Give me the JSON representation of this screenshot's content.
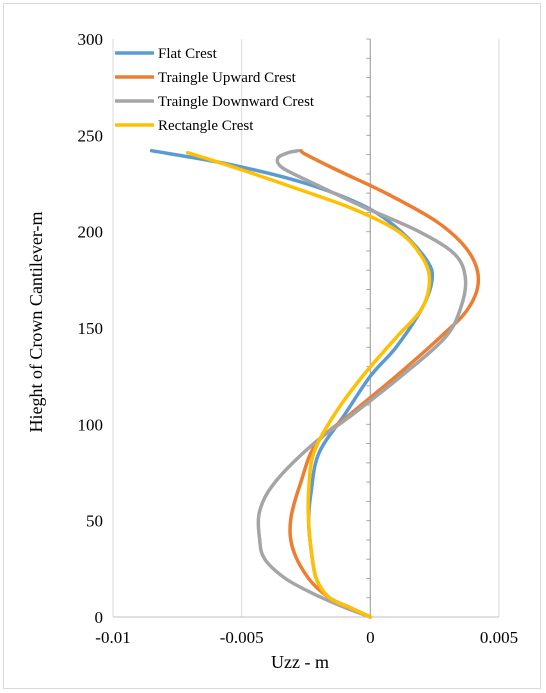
{
  "chart_data": {
    "type": "line",
    "xlabel": "Uzz - m",
    "ylabel": "Hieght of Crown Cantilever-m",
    "xlim": [
      -0.01,
      0.005
    ],
    "ylim": [
      0,
      300
    ],
    "xticks": [
      -0.01,
      -0.005,
      0,
      0.005
    ],
    "xtick_labels": [
      "-0.01",
      "-0.005",
      "0",
      "0.005"
    ],
    "yticks": [
      0,
      50,
      100,
      150,
      200,
      250,
      300
    ],
    "ytick_labels": [
      "0",
      "50",
      "100",
      "150",
      "200",
      "250",
      "300"
    ],
    "grid": "vertical",
    "legend_position": "top-left",
    "series": [
      {
        "name": "Flat Crest",
        "color": "#5B9BD5",
        "points": [
          [
            0,
            0
          ],
          [
            -0.0008,
            5
          ],
          [
            -0.0016,
            10
          ],
          [
            -0.0021,
            20
          ],
          [
            -0.0023,
            35
          ],
          [
            -0.0024,
            50
          ],
          [
            -0.0023,
            65
          ],
          [
            -0.002,
            85
          ],
          [
            -0.001,
            105
          ],
          [
            0,
            125
          ],
          [
            0.001,
            140
          ],
          [
            0.002,
            160
          ],
          [
            0.0024,
            175
          ],
          [
            0.0022,
            185
          ],
          [
            0.0012,
            200
          ],
          [
            -0.0002,
            213
          ],
          [
            -0.0025,
            225
          ],
          [
            -0.0055,
            235
          ],
          [
            -0.0085,
            242
          ]
        ]
      },
      {
        "name": "Traingle Upward Crest",
        "color": "#ED7D31",
        "points": [
          [
            0,
            0
          ],
          [
            -0.0008,
            5
          ],
          [
            -0.0016,
            10
          ],
          [
            -0.0024,
            20
          ],
          [
            -0.003,
            35
          ],
          [
            -0.0031,
            50
          ],
          [
            -0.0027,
            70
          ],
          [
            -0.0021,
            90
          ],
          [
            -0.0008,
            105
          ],
          [
            0.001,
            125
          ],
          [
            0.0027,
            145
          ],
          [
            0.0038,
            160
          ],
          [
            0.0042,
            175
          ],
          [
            0.0038,
            190
          ],
          [
            0.0026,
            205
          ],
          [
            0.0006,
            220
          ],
          [
            -0.0013,
            232
          ],
          [
            -0.0025,
            240
          ],
          [
            -0.0027,
            242
          ]
        ]
      },
      {
        "name": "Traingle Downward Crest",
        "color": "#A5A5A5",
        "points": [
          [
            0,
            0
          ],
          [
            -0.001,
            5
          ],
          [
            -0.0022,
            12
          ],
          [
            -0.0033,
            20
          ],
          [
            -0.0041,
            30
          ],
          [
            -0.0043,
            40
          ],
          [
            -0.0043,
            55
          ],
          [
            -0.0037,
            70
          ],
          [
            -0.0022,
            90
          ],
          [
            -0.0007,
            105
          ],
          [
            0.0012,
            125
          ],
          [
            0.0029,
            145
          ],
          [
            0.0035,
            160
          ],
          [
            0.0037,
            175
          ],
          [
            0.0033,
            188
          ],
          [
            0.0019,
            200
          ],
          [
            -0.0003,
            213
          ],
          [
            -0.0022,
            225
          ],
          [
            -0.0034,
            233
          ],
          [
            -0.0036,
            238
          ],
          [
            -0.0032,
            241
          ],
          [
            -0.0028,
            242
          ]
        ]
      },
      {
        "name": "Rectangle Crest",
        "color": "#FFC000",
        "points": [
          [
            0,
            0
          ],
          [
            -0.0008,
            5
          ],
          [
            -0.0016,
            10
          ],
          [
            -0.0021,
            20
          ],
          [
            -0.0023,
            35
          ],
          [
            -0.0024,
            50
          ],
          [
            -0.0024,
            65
          ],
          [
            -0.0022,
            85
          ],
          [
            -0.0014,
            105
          ],
          [
            -0.0003,
            125
          ],
          [
            0.001,
            145
          ],
          [
            0.002,
            160
          ],
          [
            0.0023,
            175
          ],
          [
            0.002,
            187
          ],
          [
            0.0011,
            200
          ],
          [
            -0.0007,
            212
          ],
          [
            -0.003,
            223
          ],
          [
            -0.0052,
            233
          ],
          [
            -0.0071,
            241
          ]
        ]
      }
    ]
  }
}
